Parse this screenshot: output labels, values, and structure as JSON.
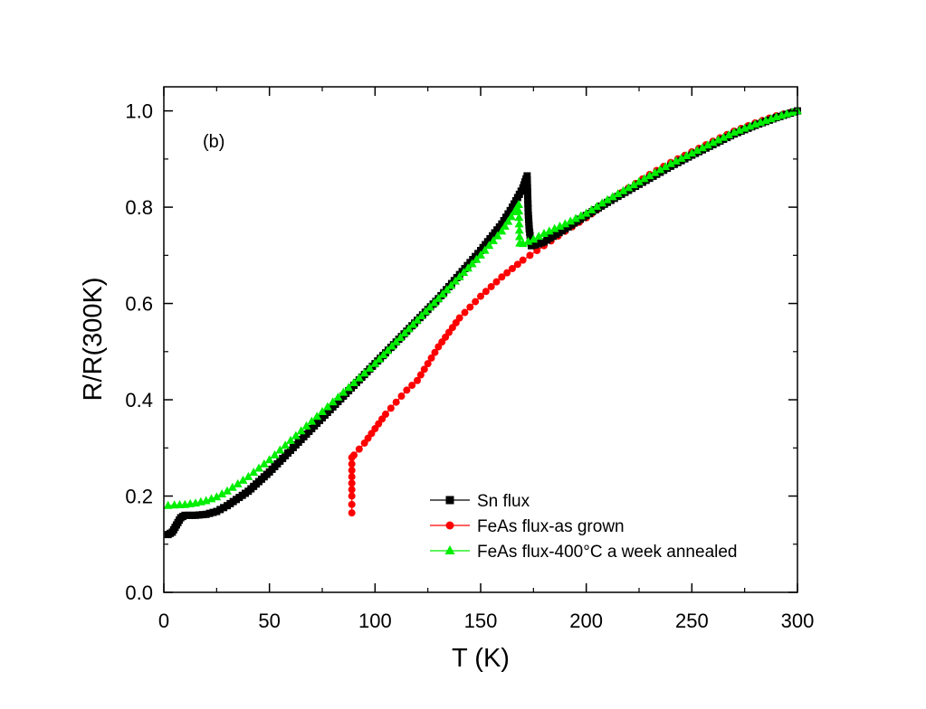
{
  "chart_data": {
    "type": "scatter",
    "panel_label": "(b)",
    "xlabel": "T (K)",
    "ylabel": "R/R(300K)",
    "xlim": [
      0,
      300
    ],
    "ylim": [
      0.0,
      1.05
    ],
    "xticks": [
      0,
      50,
      100,
      150,
      200,
      250,
      300
    ],
    "xtick_labels": [
      "0",
      "50",
      "100",
      "150",
      "200",
      "250",
      "300"
    ],
    "yticks": [
      0.0,
      0.2,
      0.4,
      0.6,
      0.8,
      1.0
    ],
    "ytick_labels": [
      "0.0",
      "0.2",
      "0.4",
      "0.6",
      "0.8",
      "1.0"
    ],
    "legend_position": "bottom-right",
    "series": [
      {
        "name": "Sn flux",
        "color": "#000000",
        "marker": "square",
        "points": [
          [
            2,
            0.12
          ],
          [
            4,
            0.125
          ],
          [
            6,
            0.14
          ],
          [
            8,
            0.155
          ],
          [
            10,
            0.16
          ],
          [
            15,
            0.16
          ],
          [
            20,
            0.162
          ],
          [
            25,
            0.168
          ],
          [
            30,
            0.18
          ],
          [
            40,
            0.21
          ],
          [
            50,
            0.25
          ],
          [
            60,
            0.295
          ],
          [
            70,
            0.34
          ],
          [
            80,
            0.385
          ],
          [
            90,
            0.43
          ],
          [
            100,
            0.475
          ],
          [
            110,
            0.52
          ],
          [
            120,
            0.565
          ],
          [
            130,
            0.61
          ],
          [
            140,
            0.66
          ],
          [
            150,
            0.71
          ],
          [
            160,
            0.765
          ],
          [
            165,
            0.8
          ],
          [
            170,
            0.84
          ],
          [
            172,
            0.865
          ],
          [
            172.5,
            0.79
          ],
          [
            173,
            0.755
          ],
          [
            174,
            0.72
          ],
          [
            176,
            0.722
          ],
          [
            180,
            0.728
          ],
          [
            190,
            0.755
          ],
          [
            200,
            0.783
          ],
          [
            210,
            0.81
          ],
          [
            220,
            0.835
          ],
          [
            230,
            0.86
          ],
          [
            240,
            0.885
          ],
          [
            250,
            0.908
          ],
          [
            260,
            0.93
          ],
          [
            270,
            0.952
          ],
          [
            280,
            0.97
          ],
          [
            290,
            0.986
          ],
          [
            300,
            1.0
          ]
        ]
      },
      {
        "name": "FeAs flux-as grown",
        "color": "#ff0000",
        "marker": "circle",
        "points": [
          [
            89,
            0.165
          ],
          [
            89,
            0.2
          ],
          [
            89,
            0.24
          ],
          [
            89,
            0.28
          ],
          [
            90,
            0.285
          ],
          [
            95,
            0.31
          ],
          [
            100,
            0.34
          ],
          [
            105,
            0.37
          ],
          [
            110,
            0.395
          ],
          [
            115,
            0.42
          ],
          [
            120,
            0.44
          ],
          [
            125,
            0.475
          ],
          [
            130,
            0.51
          ],
          [
            135,
            0.54
          ],
          [
            140,
            0.57
          ],
          [
            150,
            0.615
          ],
          [
            160,
            0.655
          ],
          [
            170,
            0.69
          ],
          [
            180,
            0.72
          ],
          [
            190,
            0.75
          ],
          [
            200,
            0.778
          ],
          [
            210,
            0.81
          ],
          [
            220,
            0.84
          ],
          [
            230,
            0.868
          ],
          [
            240,
            0.893
          ],
          [
            250,
            0.915
          ],
          [
            260,
            0.937
          ],
          [
            270,
            0.958
          ],
          [
            280,
            0.975
          ],
          [
            290,
            0.99
          ],
          [
            300,
            1.0
          ]
        ]
      },
      {
        "name": "FeAs flux-400°C a week annealed",
        "color": "#00ee00",
        "marker": "triangle",
        "points": [
          [
            2,
            0.18
          ],
          [
            5,
            0.181
          ],
          [
            10,
            0.182
          ],
          [
            15,
            0.185
          ],
          [
            20,
            0.19
          ],
          [
            25,
            0.198
          ],
          [
            30,
            0.21
          ],
          [
            40,
            0.24
          ],
          [
            50,
            0.275
          ],
          [
            60,
            0.315
          ],
          [
            70,
            0.355
          ],
          [
            80,
            0.395
          ],
          [
            90,
            0.435
          ],
          [
            100,
            0.475
          ],
          [
            110,
            0.52
          ],
          [
            120,
            0.565
          ],
          [
            130,
            0.61
          ],
          [
            140,
            0.655
          ],
          [
            150,
            0.7
          ],
          [
            160,
            0.75
          ],
          [
            166,
            0.79
          ],
          [
            168,
            0.805
          ],
          [
            168.5,
            0.725
          ],
          [
            170,
            0.724
          ],
          [
            175,
            0.733
          ],
          [
            180,
            0.745
          ],
          [
            190,
            0.765
          ],
          [
            200,
            0.787
          ],
          [
            210,
            0.815
          ],
          [
            220,
            0.84
          ],
          [
            230,
            0.865
          ],
          [
            240,
            0.89
          ],
          [
            250,
            0.912
          ],
          [
            260,
            0.934
          ],
          [
            270,
            0.955
          ],
          [
            280,
            0.972
          ],
          [
            290,
            0.987
          ],
          [
            300,
            1.0
          ]
        ]
      }
    ]
  }
}
